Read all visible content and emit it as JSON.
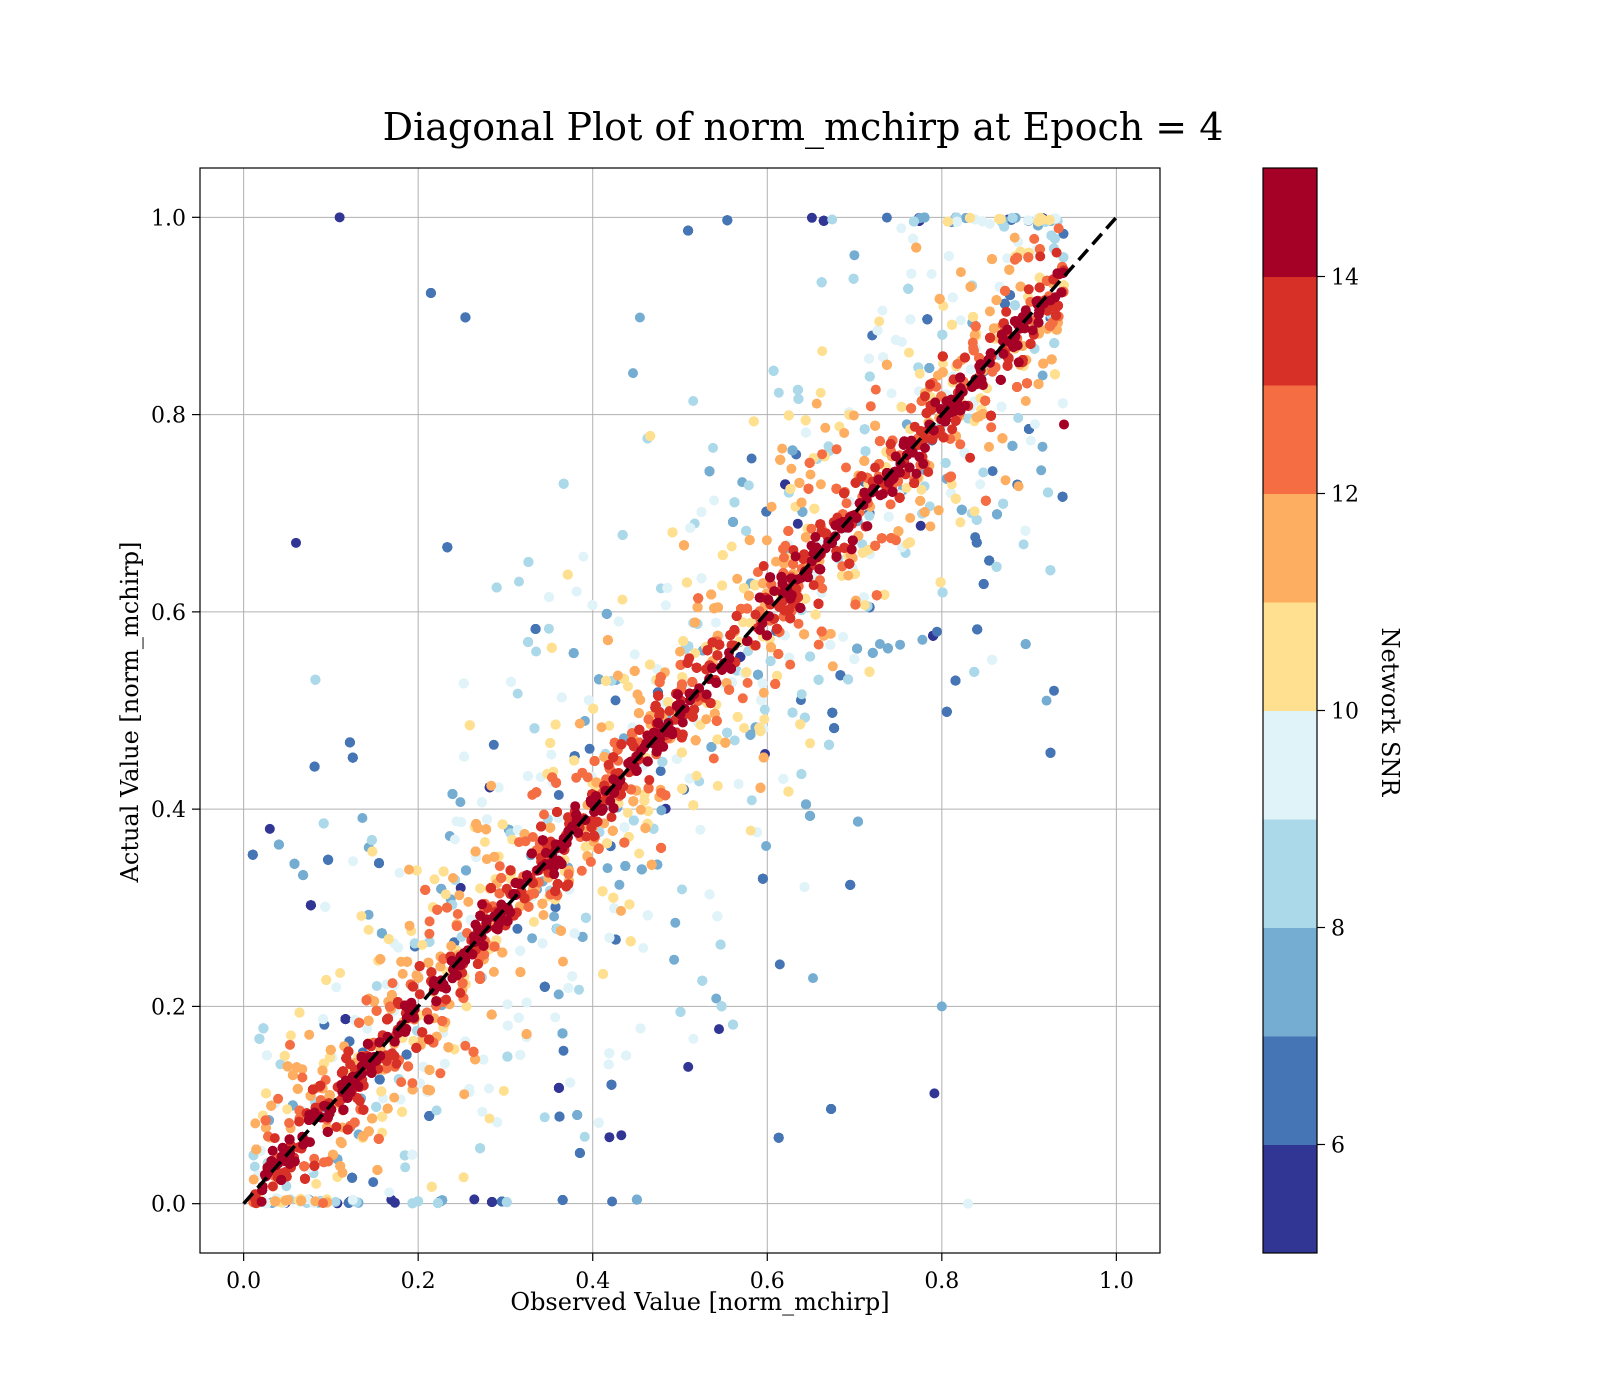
{
  "chart_data": {
    "type": "scatter",
    "title": "Diagonal Plot of norm_mchirp at Epoch = 4",
    "xlabel": "Observed Value [norm_mchirp]",
    "ylabel": "Actual Value [norm_mchirp]",
    "xlim": [
      -0.05,
      1.05
    ],
    "ylim": [
      -0.05,
      1.05
    ],
    "xticks": [
      0.0,
      0.2,
      0.4,
      0.6,
      0.8,
      1.0
    ],
    "yticks": [
      0.0,
      0.2,
      0.4,
      0.6,
      0.8,
      1.0
    ],
    "xtick_labels": [
      "0.0",
      "0.2",
      "0.4",
      "0.6",
      "0.8",
      "1.0"
    ],
    "ytick_labels": [
      "0.0",
      "0.2",
      "0.4",
      "0.6",
      "0.8",
      "1.0"
    ],
    "grid": true,
    "reference_line": {
      "x": [
        0.0,
        1.0
      ],
      "y": [
        0.0,
        1.0
      ],
      "style": "dashed",
      "color": "#000000"
    },
    "colorbar": {
      "label": "Network SNR",
      "range": [
        5,
        15
      ],
      "ticks": [
        6,
        8,
        10,
        12,
        14
      ],
      "tick_labels": [
        "6",
        "8",
        "10",
        "12",
        "14"
      ],
      "colors": [
        "#313695",
        "#4575b4",
        "#74add1",
        "#abd9e9",
        "#e0f3f8",
        "#fee090",
        "#fdae61",
        "#f46d43",
        "#d73027",
        "#a50026"
      ]
    },
    "description_points": "dense scatter of observed vs actual norm_mchirp; high SNR (>=14) points cluster along the diagonal, low SNR points spread far from it",
    "sample_points": [
      {
        "x": 0.11,
        "y": 1.0,
        "snr": 5.5
      },
      {
        "x": 0.06,
        "y": 0.67,
        "snr": 5.5
      },
      {
        "x": 0.03,
        "y": 0.38,
        "snr": 5.5
      },
      {
        "x": 0.92,
        "y": 0.51,
        "snr": 7.5
      },
      {
        "x": 0.83,
        "y": 0.0,
        "snr": 9.0
      },
      {
        "x": 0.8,
        "y": 0.2,
        "snr": 7.5
      },
      {
        "x": 0.94,
        "y": 0.79,
        "snr": 14.5
      },
      {
        "x": 0.5,
        "y": 0.5,
        "snr": 14.5
      }
    ]
  }
}
